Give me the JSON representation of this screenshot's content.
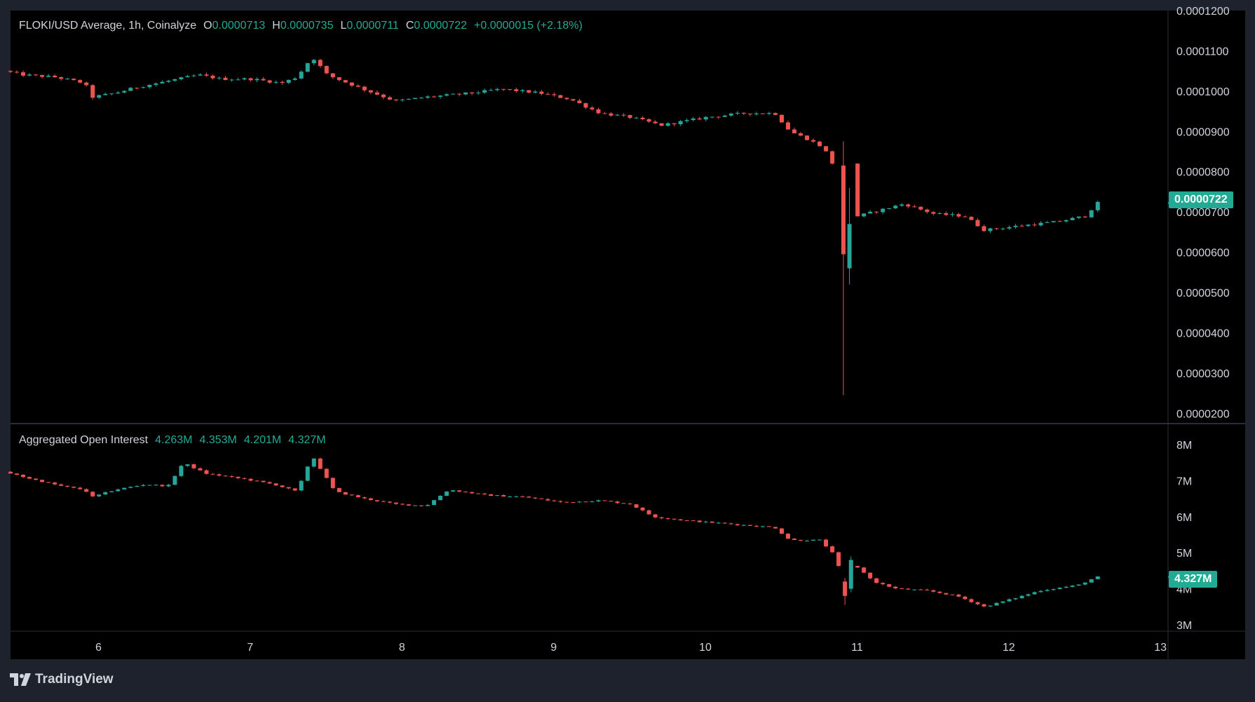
{
  "colors": {
    "up": "#26a69a",
    "down": "#ef5350",
    "background": "#000000",
    "frame": "#1e222d",
    "badge": "#22ab94",
    "text": "#d1d4dc"
  },
  "price_legend": {
    "title": "FLOKI/USD Average, 1h, Coinalyze",
    "o_key": "O",
    "o_val": "0.0000713",
    "h_key": "H",
    "h_val": "0.0000735",
    "l_key": "L",
    "l_val": "0.0000711",
    "c_key": "C",
    "c_val": "0.0000722",
    "change": "+0.0000015 (+2.18%)"
  },
  "oi_legend": {
    "title": "Aggregated Open Interest",
    "v1": "4.263M",
    "v2": "4.353M",
    "v3": "4.201M",
    "v4": "4.327M"
  },
  "price_badge": "0.0000722",
  "oi_badge": "4.327M",
  "brand": {
    "name": "TradingView",
    "logo_icon": "tradingview-logo-icon"
  },
  "chart_data": [
    {
      "type": "candlestick",
      "title": "FLOKI/USD Average, 1h, Coinalyze",
      "x_range": [
        5.42,
        13.05
      ],
      "ylim": [
        1.78e-05,
        0.00012
      ],
      "y_ticks": [
        "0.0000200",
        "0.0000300",
        "0.0000400",
        "0.0000500",
        "0.0000600",
        "0.0000700",
        "0.0000800",
        "0.0000900",
        "0.0001000",
        "0.0001100",
        "0.0001200"
      ],
      "y_tick_values": [
        2e-05,
        3e-05,
        4e-05,
        5e-05,
        6e-05,
        7e-05,
        8e-05,
        9e-05,
        0.0001,
        0.00011,
        0.00012
      ],
      "x_ticks": [
        "6",
        "7",
        "8",
        "9",
        "10",
        "11",
        "12",
        "13"
      ],
      "current_value": 7.22e-05,
      "path_points": [
        [
          5.42,
          0.000105
        ],
        [
          5.55,
          0.000104
        ],
        [
          5.75,
          0.0001035
        ],
        [
          5.95,
          0.000102
        ],
        [
          6.0,
          9.85e-05
        ],
        [
          6.15,
          9.95e-05
        ],
        [
          6.3,
          0.000101
        ],
        [
          6.5,
          0.0001025
        ],
        [
          6.7,
          0.000104
        ],
        [
          6.85,
          0.000103
        ],
        [
          7.05,
          0.000103
        ],
        [
          7.25,
          0.000102
        ],
        [
          7.35,
          0.0001035
        ],
        [
          7.45,
          0.0001085
        ],
        [
          7.55,
          0.000104
        ],
        [
          7.75,
          0.000101
        ],
        [
          8.0,
          9.75e-05
        ],
        [
          8.2,
          9.85e-05
        ],
        [
          8.5,
          9.95e-05
        ],
        [
          8.7,
          0.0001005
        ],
        [
          8.95,
          9.95e-05
        ],
        [
          9.15,
          9.8e-05
        ],
        [
          9.35,
          9.45e-05
        ],
        [
          9.55,
          9.35e-05
        ],
        [
          9.75,
          9.15e-05
        ],
        [
          10.05,
          9.35e-05
        ],
        [
          10.3,
          9.45e-05
        ],
        [
          10.5,
          9.45e-05
        ],
        [
          10.6,
          9e-05
        ],
        [
          10.72,
          8.8e-05
        ],
        [
          10.82,
          8.6e-05
        ],
        [
          10.88,
          8.2e-05
        ],
        [
          10.93,
          6.5e-05
        ],
        [
          11.0,
          6.85e-05
        ],
        [
          11.15,
          7e-05
        ],
        [
          11.35,
          7.2e-05
        ],
        [
          11.55,
          6.95e-05
        ],
        [
          11.75,
          6.9e-05
        ],
        [
          11.88,
          6.55e-05
        ],
        [
          12.1,
          6.65e-05
        ],
        [
          12.35,
          6.75e-05
        ],
        [
          12.55,
          6.9e-05
        ],
        [
          12.62,
          7.22e-05
        ]
      ],
      "spikes": [
        {
          "x": 10.91,
          "open": 8.15e-05,
          "close": 5.95e-05,
          "high": 8.75e-05,
          "low": 2.45e-05
        },
        {
          "x": 10.95,
          "open": 5.6e-05,
          "close": 6.7e-05,
          "high": 7.6e-05,
          "low": 5.2e-05
        }
      ]
    },
    {
      "type": "candlestick",
      "title": "Aggregated Open Interest",
      "x_range": [
        5.42,
        13.05
      ],
      "ylim": [
        2.86,
        8.55
      ],
      "y_ticks": [
        "3M",
        "4M",
        "5M",
        "6M",
        "7M",
        "8M"
      ],
      "y_tick_values": [
        3,
        4,
        5,
        6,
        7,
        8
      ],
      "current_value": 4.327,
      "path_points": [
        [
          5.42,
          7.25
        ],
        [
          5.6,
          7.05
        ],
        [
          5.8,
          6.85
        ],
        [
          5.95,
          6.75
        ],
        [
          6.0,
          6.55
        ],
        [
          6.15,
          6.75
        ],
        [
          6.35,
          6.9
        ],
        [
          6.5,
          6.85
        ],
        [
          6.6,
          7.5
        ],
        [
          6.75,
          7.2
        ],
        [
          7.0,
          7.05
        ],
        [
          7.2,
          6.9
        ],
        [
          7.35,
          6.7
        ],
        [
          7.45,
          7.7
        ],
        [
          7.6,
          6.7
        ],
        [
          7.8,
          6.5
        ],
        [
          8.0,
          6.35
        ],
        [
          8.2,
          6.3
        ],
        [
          8.35,
          6.75
        ],
        [
          8.6,
          6.6
        ],
        [
          8.85,
          6.55
        ],
        [
          9.1,
          6.4
        ],
        [
          9.35,
          6.45
        ],
        [
          9.55,
          6.35
        ],
        [
          9.7,
          6.0
        ],
        [
          9.9,
          5.9
        ],
        [
          10.2,
          5.8
        ],
        [
          10.5,
          5.7
        ],
        [
          10.6,
          5.35
        ],
        [
          10.8,
          5.35
        ],
        [
          10.9,
          4.9
        ],
        [
          10.95,
          4.2
        ],
        [
          11.05,
          4.6
        ],
        [
          11.15,
          4.2
        ],
        [
          11.3,
          4.0
        ],
        [
          11.5,
          3.95
        ],
        [
          11.7,
          3.8
        ],
        [
          11.88,
          3.5
        ],
        [
          12.05,
          3.7
        ],
        [
          12.25,
          3.95
        ],
        [
          12.5,
          4.1
        ],
        [
          12.62,
          4.327
        ]
      ],
      "spikes": [
        {
          "x": 10.92,
          "open": 4.2,
          "close": 3.8,
          "high": 4.3,
          "low": 3.55
        },
        {
          "x": 10.96,
          "open": 4.0,
          "close": 4.8,
          "high": 4.9,
          "low": 3.9
        }
      ]
    }
  ]
}
